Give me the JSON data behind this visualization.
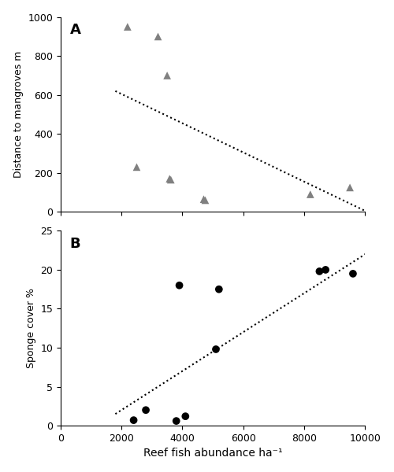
{
  "panel_A": {
    "label": "A",
    "x": [
      2200,
      2500,
      3200,
      3500,
      3580,
      3620,
      4700,
      4750,
      8200,
      9500
    ],
    "y": [
      950,
      230,
      900,
      700,
      170,
      165,
      65,
      60,
      90,
      125
    ],
    "ylabel": "Distance to mangroves m",
    "ylim": [
      0,
      1000
    ],
    "yticks": [
      0,
      200,
      400,
      600,
      800,
      1000
    ],
    "marker": "^",
    "marker_color": "#808080",
    "marker_size": 7,
    "trendline_x": [
      1800,
      10200
    ],
    "trendline_y": [
      620,
      -10
    ]
  },
  "panel_B": {
    "label": "B",
    "x": [
      2400,
      2800,
      3800,
      3900,
      4100,
      5100,
      5200,
      8500,
      8700,
      9600
    ],
    "y": [
      0.7,
      2.0,
      0.6,
      18.0,
      1.2,
      9.8,
      17.5,
      19.8,
      20.0,
      19.5
    ],
    "ylabel": "Sponge cover %",
    "ylim": [
      0,
      25
    ],
    "yticks": [
      0,
      5,
      10,
      15,
      20,
      25
    ],
    "marker": "o",
    "marker_color": "#000000",
    "marker_size": 7,
    "trendline_x": [
      1800,
      10200
    ],
    "trendline_y": [
      1.5,
      22.5
    ]
  },
  "xlim": [
    0,
    10000
  ],
  "xticks": [
    0,
    2000,
    4000,
    6000,
    8000,
    10000
  ],
  "xlabel": "Reef fish abundance ha⁻¹",
  "background_color": "#ffffff",
  "line_color": "#000000",
  "spine_color": "#000000",
  "tick_labelsize": 9,
  "ylabel_fontsize": 9,
  "xlabel_fontsize": 10,
  "label_fontsize": 13
}
